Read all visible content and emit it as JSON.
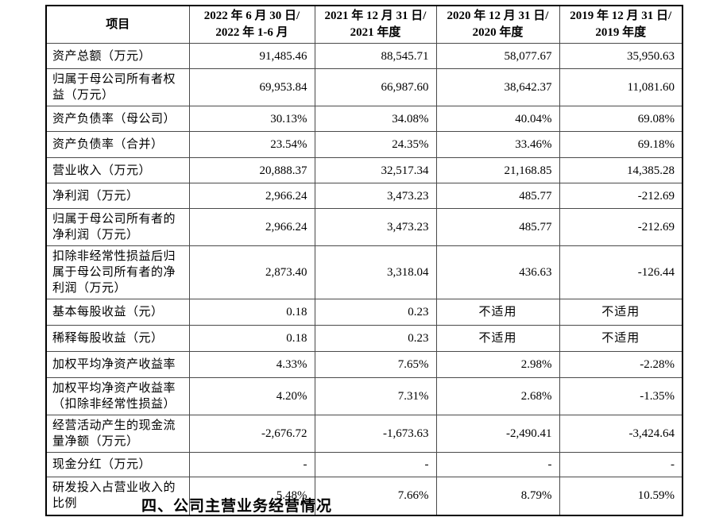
{
  "page": {
    "section_heading": "四、公司主营业务经营情况"
  },
  "table": {
    "columns": [
      {
        "label": "项目"
      },
      {
        "line1": "2022 年 6 月 30 日/",
        "line2": "2022 年 1-6 月"
      },
      {
        "line1": "2021 年 12 月 31 日/",
        "line2": "2021 年度"
      },
      {
        "line1": "2020 年 12 月 31 日/",
        "line2": "2020 年度"
      },
      {
        "line1": "2019 年 12 月 31 日/",
        "line2": "2019 年度"
      }
    ],
    "not_applicable_text": "不适用",
    "rows": [
      {
        "label": "资产总额（万元）",
        "values": [
          "91,485.46",
          "88,545.71",
          "58,077.67",
          "35,950.63"
        ]
      },
      {
        "label": "归属于母公司所有者权益（万元）",
        "values": [
          "69,953.84",
          "66,987.60",
          "38,642.37",
          "11,081.60"
        ]
      },
      {
        "label": "资产负债率（母公司）",
        "values": [
          "30.13%",
          "34.08%",
          "40.04%",
          "69.08%"
        ]
      },
      {
        "label": "资产负债率（合并）",
        "values": [
          "23.54%",
          "24.35%",
          "33.46%",
          "69.18%"
        ]
      },
      {
        "label": "营业收入（万元）",
        "values": [
          "20,888.37",
          "32,517.34",
          "21,168.85",
          "14,385.28"
        ]
      },
      {
        "label": "净利润（万元）",
        "values": [
          "2,966.24",
          "3,473.23",
          "485.77",
          "-212.69"
        ]
      },
      {
        "label": "归属于母公司所有者的净利润（万元）",
        "values": [
          "2,966.24",
          "3,473.23",
          "485.77",
          "-212.69"
        ]
      },
      {
        "label": "扣除非经常性损益后归属于母公司所有者的净利润（万元）",
        "values": [
          "2,873.40",
          "3,318.04",
          "436.63",
          "-126.44"
        ]
      },
      {
        "label": "基本每股收益（元）",
        "values": [
          "0.18",
          "0.23",
          "不适用",
          "不适用"
        ]
      },
      {
        "label": "稀释每股收益（元）",
        "values": [
          "0.18",
          "0.23",
          "不适用",
          "不适用"
        ]
      },
      {
        "label": "加权平均净资产收益率",
        "values": [
          "4.33%",
          "7.65%",
          "2.98%",
          "-2.28%"
        ]
      },
      {
        "label": "加权平均净资产收益率（扣除非经常性损益）",
        "values": [
          "4.20%",
          "7.31%",
          "2.68%",
          "-1.35%"
        ]
      },
      {
        "label": "经营活动产生的现金流量净额（万元）",
        "values": [
          "-2,676.72",
          "-1,673.63",
          "-2,490.41",
          "-3,424.64"
        ]
      },
      {
        "label": "现金分红（万元）",
        "values": [
          "-",
          "-",
          "-",
          "-"
        ]
      },
      {
        "label": "研发投入占营业收入的比例",
        "values": [
          "5.48%",
          "7.66%",
          "8.79%",
          "10.59%"
        ]
      }
    ]
  }
}
